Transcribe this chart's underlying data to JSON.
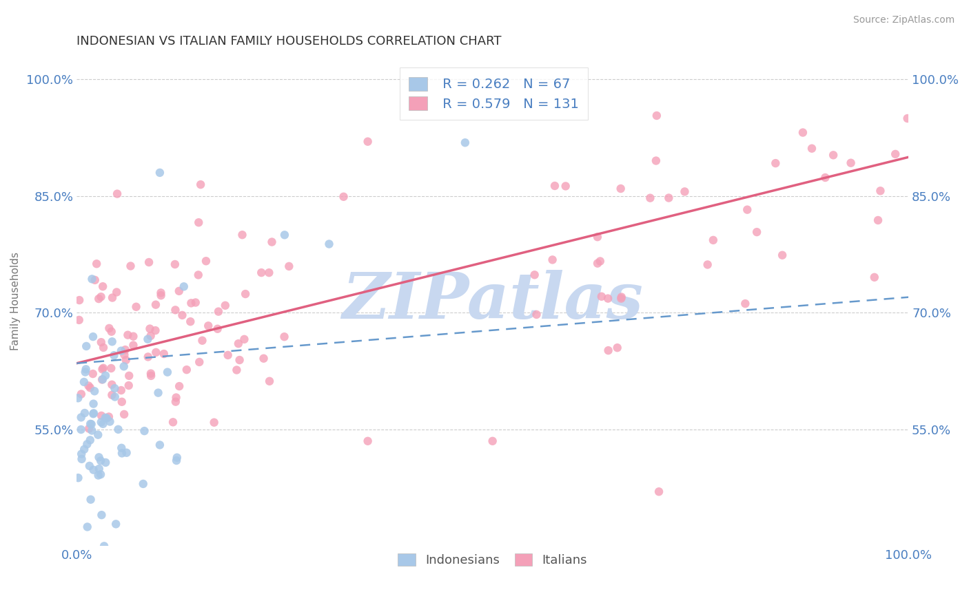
{
  "title": "INDONESIAN VS ITALIAN FAMILY HOUSEHOLDS CORRELATION CHART",
  "source_text": "Source: ZipAtlas.com",
  "ylabel": "Family Households",
  "xlim": [
    0.0,
    1.0
  ],
  "ylim": [
    0.4,
    1.03
  ],
  "yticks": [
    0.55,
    0.7,
    0.85,
    1.0
  ],
  "ytick_labels": [
    "55.0%",
    "70.0%",
    "85.0%",
    "100.0%"
  ],
  "xtick_labels": [
    "0.0%",
    "100.0%"
  ],
  "legend_r1": "R = 0.262",
  "legend_n1": "N = 67",
  "legend_r2": "R = 0.579",
  "legend_n2": "N = 131",
  "color_indonesian": "#a8c8e8",
  "color_italian": "#f4a0b8",
  "color_blue_line": "#6699cc",
  "color_pink_line": "#e06080",
  "color_text_blue": "#4a7fc1",
  "watermark": "ZIPatlas",
  "watermark_color": "#c8d8f0",
  "legend_label1": "Indonesians",
  "legend_label2": "Italians",
  "ind_trend_x0": 0.0,
  "ind_trend_y0": 0.635,
  "ind_trend_x1": 1.0,
  "ind_trend_y1": 0.72,
  "ital_trend_x0": 0.0,
  "ital_trend_y0": 0.635,
  "ital_trend_x1": 1.0,
  "ital_trend_y1": 0.9
}
